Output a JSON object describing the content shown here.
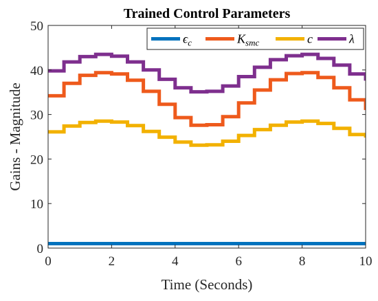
{
  "chart_data": {
    "type": "line",
    "title": "Trained Control Parameters",
    "xlabel": "Time (Seconds)",
    "ylabel": "Gains - Magnitude",
    "xlim": [
      0,
      10
    ],
    "ylim": [
      0,
      50
    ],
    "xticks": [
      0,
      2,
      4,
      6,
      8,
      10
    ],
    "yticks": [
      0,
      10,
      20,
      30,
      40,
      50
    ],
    "grid": false,
    "legend_position": "top-right",
    "legend_orientation": "horizontal",
    "step": 0.5,
    "series": [
      {
        "name": "ϵc",
        "label_main": "ϵ",
        "label_sub": "c",
        "color": "#0072BD",
        "x": [
          0,
          0.5,
          1,
          1.5,
          2,
          2.5,
          3,
          3.5,
          4,
          4.5,
          5,
          5.5,
          6,
          6.5,
          7,
          7.5,
          8,
          8.5,
          9,
          9.5
        ],
        "y": [
          1,
          1,
          1,
          1,
          1,
          1,
          1,
          1,
          1,
          1,
          1,
          1,
          1,
          1,
          1,
          1,
          1,
          1,
          1,
          1
        ]
      },
      {
        "name": "Ksmc",
        "label_main": "K",
        "label_sub": "smc",
        "color": "#EE5A1C",
        "x": [
          0,
          0.5,
          1,
          1.5,
          2,
          2.5,
          3,
          3.5,
          4,
          4.5,
          5,
          5.5,
          6,
          6.5,
          7,
          7.5,
          8,
          8.5,
          9,
          9.5
        ],
        "y": [
          34.2,
          37,
          38.8,
          39.4,
          39.1,
          37.7,
          35.2,
          32.3,
          29.3,
          27.6,
          27.7,
          29.5,
          32.6,
          35.5,
          37.8,
          39.2,
          39.4,
          38.3,
          36,
          33.3
        ]
      },
      {
        "name": "c",
        "label_main": "c",
        "label_sub": "",
        "color": "#F2B100",
        "x": [
          0,
          0.5,
          1,
          1.5,
          2,
          2.5,
          3,
          3.5,
          4,
          4.5,
          5,
          5.5,
          6,
          6.5,
          7,
          7.5,
          8,
          8.5,
          9,
          9.5
        ],
        "y": [
          26.1,
          27.4,
          28.2,
          28.5,
          28.3,
          27.5,
          26.2,
          24.9,
          23.8,
          23.1,
          23.2,
          24,
          25.3,
          26.6,
          27.6,
          28.3,
          28.5,
          28,
          26.9,
          25.5
        ]
      },
      {
        "name": "λ",
        "label_main": "λ",
        "label_sub": "",
        "color": "#7E2F8E",
        "x": [
          0,
          0.5,
          1,
          1.5,
          2,
          2.5,
          3,
          3.5,
          4,
          4.5,
          5,
          5.5,
          6,
          6.5,
          7,
          7.5,
          8,
          8.5,
          9,
          9.5
        ],
        "y": [
          39.8,
          41.8,
          43,
          43.5,
          43.1,
          41.8,
          40,
          37.9,
          36,
          35.1,
          35.2,
          36.4,
          38.5,
          40.6,
          42.3,
          43.2,
          43.5,
          42.6,
          41.1,
          39.1
        ]
      }
    ],
    "series_tail_x": 10,
    "series_tail_y": [
      1,
      31,
      24.8,
      37.6
    ]
  }
}
